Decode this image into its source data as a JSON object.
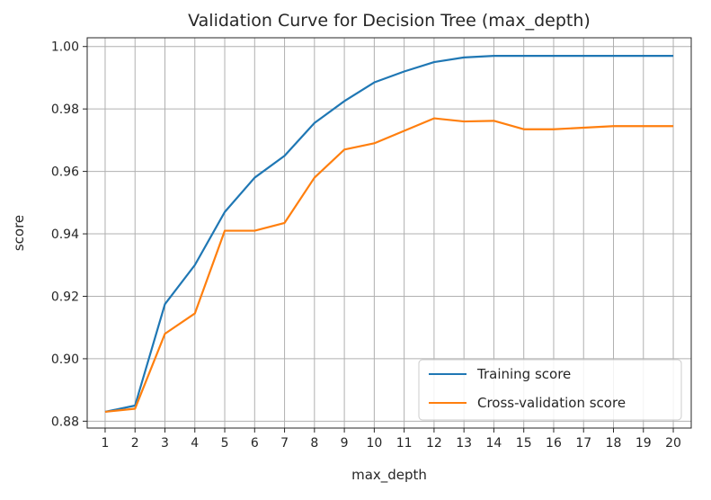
{
  "chart_data": {
    "type": "line",
    "title": "Validation Curve for Decision Tree (max_depth)",
    "xlabel": "max_depth",
    "ylabel": "score",
    "x": [
      1,
      2,
      3,
      4,
      5,
      6,
      7,
      8,
      9,
      10,
      11,
      12,
      13,
      14,
      15,
      16,
      17,
      18,
      19,
      20
    ],
    "x_ticks": [
      "1",
      "2",
      "3",
      "4",
      "5",
      "6",
      "7",
      "8",
      "9",
      "10",
      "11",
      "12",
      "13",
      "14",
      "15",
      "16",
      "17",
      "18",
      "19",
      "20"
    ],
    "y_ticks": [
      "0.88",
      "0.90",
      "0.92",
      "0.94",
      "0.96",
      "0.98",
      "1.00"
    ],
    "y_tick_values": [
      0.88,
      0.9,
      0.92,
      0.94,
      0.96,
      0.98,
      1.0
    ],
    "xlim": [
      0.4,
      20.6
    ],
    "ylim": [
      0.8778,
      1.0028
    ],
    "grid": true,
    "legend_position": "lower-right",
    "series": [
      {
        "name": "Training score",
        "color": "#1f77b4",
        "values": [
          0.883,
          0.885,
          0.9175,
          0.93,
          0.947,
          0.958,
          0.965,
          0.9755,
          0.9825,
          0.9885,
          0.992,
          0.995,
          0.9965,
          0.997,
          0.997,
          0.997,
          0.997,
          0.997,
          0.997,
          0.997
        ]
      },
      {
        "name": "Cross-validation score",
        "color": "#ff7f0e",
        "values": [
          0.883,
          0.884,
          0.908,
          0.9145,
          0.941,
          0.941,
          0.9435,
          0.958,
          0.967,
          0.969,
          0.973,
          0.977,
          0.976,
          0.9762,
          0.9735,
          0.9735,
          0.974,
          0.9745,
          0.9745,
          0.9745
        ]
      }
    ]
  }
}
